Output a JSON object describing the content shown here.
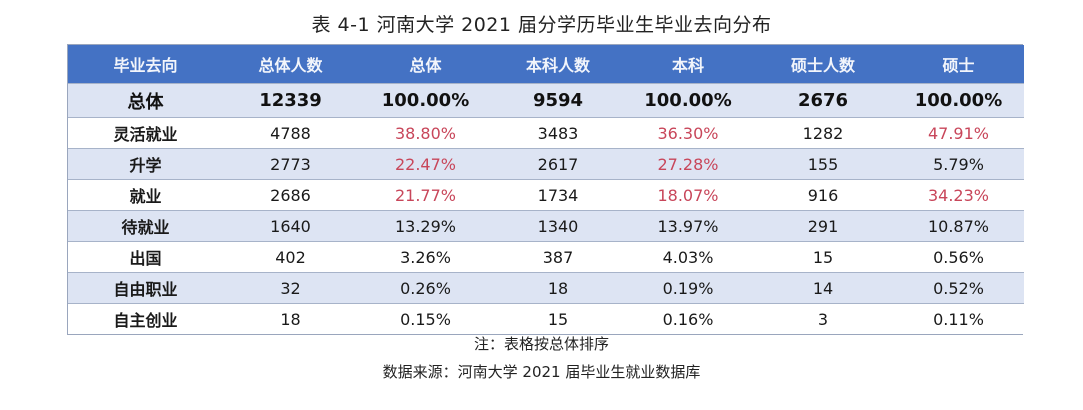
{
  "title": "表 4-1  河南大学 2021 届分学历毕业生毕业去向分布",
  "colors": {
    "header_bg": "#4472c4",
    "header_text": "#f2f5fb",
    "row_alt_bg": "#dde4f3",
    "row_bg": "#ffffff",
    "highlight_text": "#c8465a"
  },
  "table": {
    "headers": [
      "毕业去向",
      "总体人数",
      "总体",
      "本科人数",
      "本科",
      "硕士人数",
      "硕士"
    ],
    "rows": [
      {
        "label": "总体",
        "cells": [
          "12339",
          "100.00%",
          "9594",
          "100.00%",
          "2676",
          "100.00%"
        ],
        "highlight": [
          false,
          false,
          false,
          false,
          false,
          false
        ]
      },
      {
        "label": "灵活就业",
        "cells": [
          "4788",
          "38.80%",
          "3483",
          "36.30%",
          "1282",
          "47.91%"
        ],
        "highlight": [
          false,
          true,
          false,
          true,
          false,
          true
        ]
      },
      {
        "label": "升学",
        "cells": [
          "2773",
          "22.47%",
          "2617",
          "27.28%",
          "155",
          "5.79%"
        ],
        "highlight": [
          false,
          true,
          false,
          true,
          false,
          false
        ]
      },
      {
        "label": "就业",
        "cells": [
          "2686",
          "21.77%",
          "1734",
          "18.07%",
          "916",
          "34.23%"
        ],
        "highlight": [
          false,
          true,
          false,
          true,
          false,
          true
        ]
      },
      {
        "label": "待就业",
        "cells": [
          "1640",
          "13.29%",
          "1340",
          "13.97%",
          "291",
          "10.87%"
        ],
        "highlight": [
          false,
          false,
          false,
          false,
          false,
          false
        ]
      },
      {
        "label": "出国",
        "cells": [
          "402",
          "3.26%",
          "387",
          "4.03%",
          "15",
          "0.56%"
        ],
        "highlight": [
          false,
          false,
          false,
          false,
          false,
          false
        ]
      },
      {
        "label": "自由职业",
        "cells": [
          "32",
          "0.26%",
          "18",
          "0.19%",
          "14",
          "0.52%"
        ],
        "highlight": [
          false,
          false,
          false,
          false,
          false,
          false
        ]
      },
      {
        "label": "自主创业",
        "cells": [
          "18",
          "0.15%",
          "15",
          "0.16%",
          "3",
          "0.11%"
        ],
        "highlight": [
          false,
          false,
          false,
          false,
          false,
          false
        ]
      }
    ]
  },
  "notes": {
    "note": "注：表格按总体排序",
    "source": "数据来源：河南大学 2021 届毕业生就业数据库"
  }
}
